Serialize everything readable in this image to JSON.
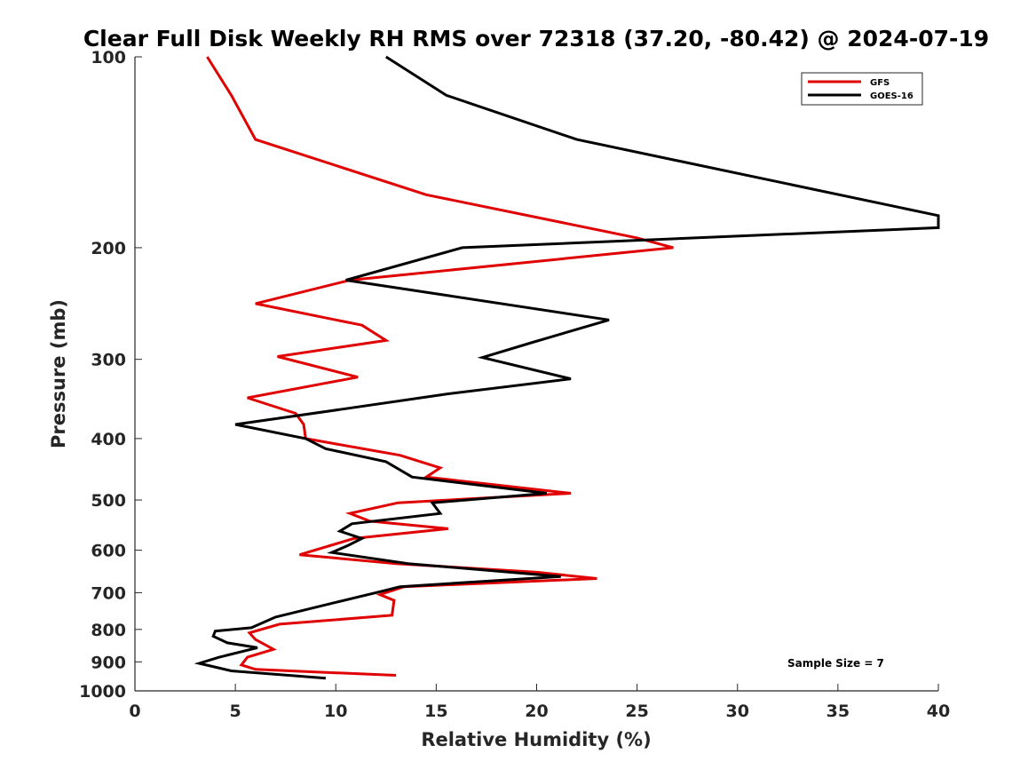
{
  "chart_data": {
    "type": "line",
    "title": "Clear Full Disk Weekly RH RMS over 72318 (37.20, -80.42) @ 2024-07-19",
    "xlabel": "Relative Humidity (%)",
    "ylabel": "Pressure (mb)",
    "xlim": [
      0,
      40
    ],
    "ylim": [
      100,
      1000
    ],
    "y_scale": "log",
    "y_direction": "reversed",
    "x_ticks": [
      0,
      5,
      10,
      15,
      20,
      25,
      30,
      35,
      40
    ],
    "y_ticks": [
      100,
      200,
      300,
      400,
      500,
      600,
      700,
      800,
      900,
      1000
    ],
    "grid": false,
    "legend_position": "top-right",
    "annotation": "Sample Size = 7",
    "series": [
      {
        "name": "GFS",
        "color": "#e00000",
        "points": [
          [
            3.6,
            100
          ],
          [
            4.8,
            115
          ],
          [
            6.0,
            135
          ],
          [
            14.5,
            165
          ],
          [
            25.0,
            193
          ],
          [
            26.8,
            200
          ],
          [
            10.7,
            225
          ],
          [
            6.0,
            245
          ],
          [
            11.3,
            265
          ],
          [
            12.5,
            280
          ],
          [
            7.1,
            297
          ],
          [
            11.1,
            320
          ],
          [
            5.6,
            345
          ],
          [
            8.0,
            365
          ],
          [
            8.4,
            380
          ],
          [
            8.5,
            400
          ],
          [
            13.2,
            425
          ],
          [
            15.2,
            445
          ],
          [
            14.5,
            460
          ],
          [
            21.7,
            488
          ],
          [
            13.1,
            505
          ],
          [
            10.7,
            525
          ],
          [
            11.7,
            540
          ],
          [
            15.6,
            555
          ],
          [
            10.9,
            575
          ],
          [
            8.2,
            610
          ],
          [
            13.0,
            630
          ],
          [
            20.0,
            650
          ],
          [
            23.0,
            665
          ],
          [
            13.4,
            685
          ],
          [
            12.2,
            705
          ],
          [
            12.9,
            720
          ],
          [
            12.8,
            760
          ],
          [
            7.2,
            785
          ],
          [
            5.7,
            810
          ],
          [
            6.0,
            830
          ],
          [
            6.9,
            860
          ],
          [
            5.6,
            885
          ],
          [
            5.3,
            910
          ],
          [
            6.0,
            925
          ],
          [
            9.5,
            935
          ],
          [
            13.0,
            945
          ]
        ]
      },
      {
        "name": "GOES-16",
        "color": "#000000",
        "points": [
          [
            12.5,
            100
          ],
          [
            15.5,
            115
          ],
          [
            22.0,
            135
          ],
          [
            40.0,
            178
          ],
          [
            40.0,
            186
          ],
          [
            16.3,
            200
          ],
          [
            10.5,
            225
          ],
          [
            15.6,
            238
          ],
          [
            23.6,
            260
          ],
          [
            19.8,
            282
          ],
          [
            17.3,
            298
          ],
          [
            21.7,
            322
          ],
          [
            15.6,
            340
          ],
          [
            10.2,
            360
          ],
          [
            5.0,
            380
          ],
          [
            8.5,
            400
          ],
          [
            9.5,
            415
          ],
          [
            12.5,
            435
          ],
          [
            13.8,
            460
          ],
          [
            20.5,
            488
          ],
          [
            14.8,
            505
          ],
          [
            15.2,
            525
          ],
          [
            10.8,
            545
          ],
          [
            10.2,
            560
          ],
          [
            11.3,
            575
          ],
          [
            10.6,
            590
          ],
          [
            9.8,
            605
          ],
          [
            13.6,
            630
          ],
          [
            21.2,
            660
          ],
          [
            13.2,
            685
          ],
          [
            12.0,
            700
          ],
          [
            10.0,
            725
          ],
          [
            7.0,
            765
          ],
          [
            5.8,
            795
          ],
          [
            4.0,
            805
          ],
          [
            3.9,
            820
          ],
          [
            4.6,
            840
          ],
          [
            6.1,
            855
          ],
          [
            4.2,
            885
          ],
          [
            3.2,
            905
          ],
          [
            4.8,
            930
          ],
          [
            9.5,
            955
          ]
        ]
      }
    ]
  }
}
